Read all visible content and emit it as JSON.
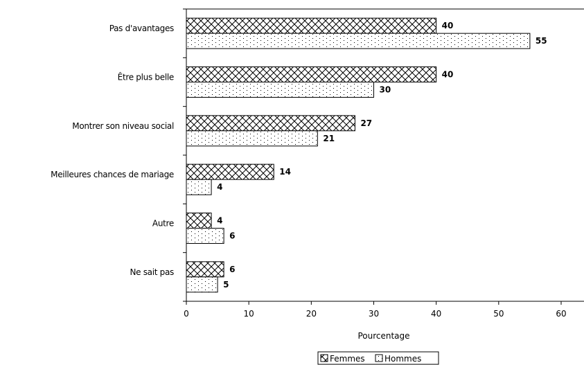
{
  "chart_data": {
    "type": "bar",
    "orientation": "horizontal",
    "categories": [
      "Pas d'avantages",
      "Être plus belle",
      "Montrer son niveau social",
      "Meilleures chances de mariage",
      "Autre",
      "Ne sait pas"
    ],
    "series": [
      {
        "name": "Femmes",
        "values": [
          40,
          40,
          27,
          14,
          4,
          6
        ]
      },
      {
        "name": "Hommes",
        "values": [
          55,
          30,
          21,
          4,
          6,
          5
        ]
      }
    ],
    "xlabel": "Pourcentage",
    "ylabel": "",
    "xlim": [
      0,
      60
    ],
    "xticks": [
      "0",
      "10",
      "20",
      "30",
      "40",
      "50",
      "60"
    ],
    "grid": false,
    "legend_position": "bottom",
    "data_labels": true,
    "patterns": {
      "Femmes": "crosshatch",
      "Hommes": "dotted"
    },
    "colors": {
      "bar_fill": "#ffffff",
      "bar_stroke": "#000000",
      "axis": "#000000"
    }
  }
}
